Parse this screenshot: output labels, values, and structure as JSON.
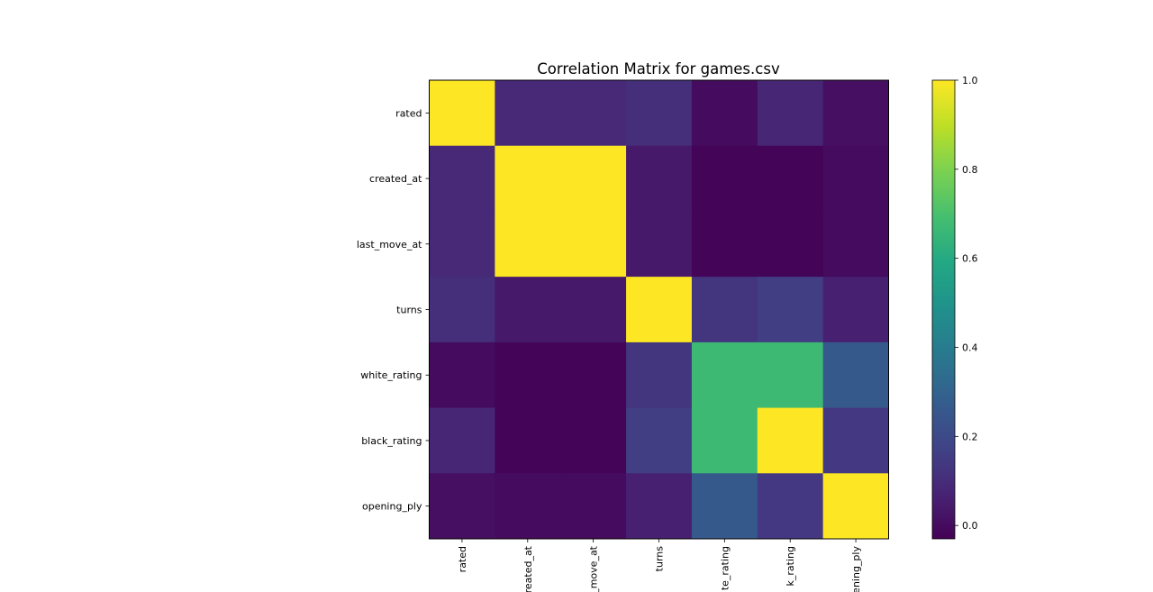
{
  "chart_data": {
    "type": "heatmap",
    "title": "Correlation Matrix for games.csv",
    "row_labels": [
      "rated",
      "created_at",
      "last_move_at",
      "turns",
      "white_rating",
      "black_rating",
      "opening_ply"
    ],
    "col_labels": [
      "rated",
      "created_at",
      "last_move_at",
      "turns",
      "white_rating",
      "black_rating",
      "opening_ply"
    ],
    "col_labels_visible": [
      "rated",
      "reated_at",
      "_move_at",
      "turns",
      "te_rating",
      "k_rating",
      "ening_ply"
    ],
    "values": [
      [
        1.0,
        0.09,
        0.09,
        0.11,
        0.0,
        0.08,
        0.01
      ],
      [
        0.09,
        1.0,
        1.0,
        0.04,
        -0.02,
        -0.02,
        0.0
      ],
      [
        0.09,
        1.0,
        1.0,
        0.04,
        -0.02,
        -0.02,
        0.0
      ],
      [
        0.11,
        0.04,
        0.04,
        1.0,
        0.13,
        0.16,
        0.06
      ],
      [
        0.0,
        -0.02,
        -0.02,
        0.13,
        0.67,
        0.67,
        0.26
      ],
      [
        0.08,
        -0.02,
        -0.02,
        0.16,
        0.67,
        1.0,
        0.14
      ],
      [
        0.01,
        0.0,
        0.0,
        0.06,
        0.26,
        0.14,
        1.0
      ]
    ],
    "colormap": "viridis",
    "colorbar": {
      "vmin": -0.03,
      "vmax": 1.0,
      "ticks": [
        0.0,
        0.2,
        0.4,
        0.6,
        0.8,
        1.0
      ],
      "tick_labels": [
        "0.0",
        "0.2",
        "0.4",
        "0.6",
        "0.8",
        "1.0"
      ]
    }
  }
}
